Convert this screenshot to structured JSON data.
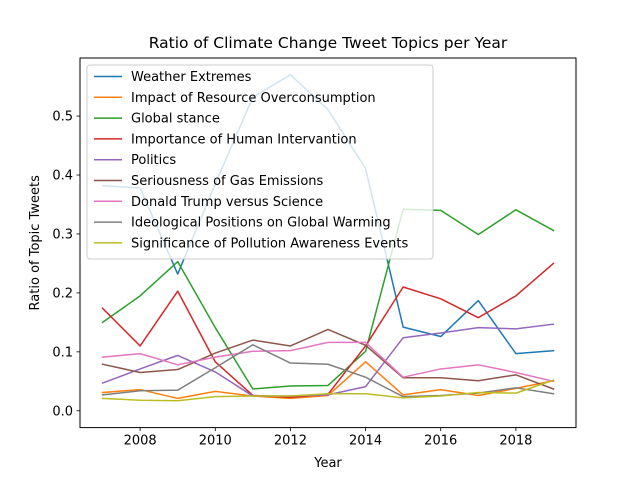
{
  "chart_data": {
    "type": "line",
    "title": "Ratio of Climate Change Tweet Topics per Year",
    "xlabel": "Year",
    "ylabel": "Ratio of Topic Tweets",
    "xlim": [
      2006.4,
      2019.6
    ],
    "ylim": [
      -0.0285,
      0.5985
    ],
    "xticks": [
      2008,
      2010,
      2012,
      2014,
      2016,
      2018
    ],
    "yticks": [
      0.0,
      0.1,
      0.2,
      0.3,
      0.4,
      0.5
    ],
    "ytick_labels": [
      "0.0",
      "0.1",
      "0.2",
      "0.3",
      "0.4",
      "0.5"
    ],
    "grid": false,
    "legend_position": "upper left",
    "x": [
      2007,
      2008,
      2009,
      2010,
      2011,
      2012,
      2013,
      2014,
      2015,
      2016,
      2017,
      2018,
      2019
    ],
    "series": [
      {
        "name": "Weather Extremes",
        "color": "#1f77b4",
        "values": [
          0.382,
          0.378,
          0.232,
          0.385,
          0.532,
          0.57,
          0.511,
          0.411,
          0.142,
          0.126,
          0.187,
          0.097,
          0.102
        ]
      },
      {
        "name": "Impact of Resource Overconsumption",
        "color": "#ff7f0e",
        "values": [
          0.031,
          0.036,
          0.021,
          0.033,
          0.025,
          0.021,
          0.026,
          0.083,
          0.027,
          0.036,
          0.026,
          0.038,
          0.051
        ]
      },
      {
        "name": "Global stance",
        "color": "#2ca02c",
        "values": [
          0.15,
          0.195,
          0.253,
          0.141,
          0.037,
          0.042,
          0.043,
          0.101,
          0.342,
          0.34,
          0.299,
          0.341,
          0.306
        ]
      },
      {
        "name": "Importance of Human Intervantion",
        "color": "#d62728",
        "values": [
          0.174,
          0.11,
          0.203,
          0.083,
          0.026,
          0.023,
          0.028,
          0.11,
          0.21,
          0.19,
          0.158,
          0.195,
          0.25
        ]
      },
      {
        "name": "Politics",
        "color": "#9467bd",
        "values": [
          0.047,
          0.071,
          0.094,
          0.066,
          0.025,
          0.025,
          0.027,
          0.041,
          0.124,
          0.132,
          0.141,
          0.139,
          0.147
        ]
      },
      {
        "name": "Seriousness of Gas Emissions",
        "color": "#8c564b",
        "values": [
          0.079,
          0.065,
          0.07,
          0.098,
          0.12,
          0.11,
          0.138,
          0.111,
          0.056,
          0.056,
          0.051,
          0.061,
          0.037
        ]
      },
      {
        "name": "Donald Trump versus Science",
        "color": "#e377c2",
        "values": [
          0.091,
          0.097,
          0.078,
          0.091,
          0.101,
          0.102,
          0.116,
          0.116,
          0.057,
          0.071,
          0.078,
          0.065,
          0.05
        ]
      },
      {
        "name": "Ideological Positions on Global Warming",
        "color": "#7f7f7f",
        "values": [
          0.027,
          0.034,
          0.035,
          0.073,
          0.112,
          0.081,
          0.079,
          0.057,
          0.024,
          0.026,
          0.03,
          0.039,
          0.029
        ]
      },
      {
        "name": "Significance of Pollution Awareness Events",
        "color": "#bcbd22",
        "values": [
          0.021,
          0.018,
          0.017,
          0.024,
          0.025,
          0.025,
          0.029,
          0.029,
          0.022,
          0.025,
          0.031,
          0.03,
          0.052
        ]
      }
    ]
  }
}
